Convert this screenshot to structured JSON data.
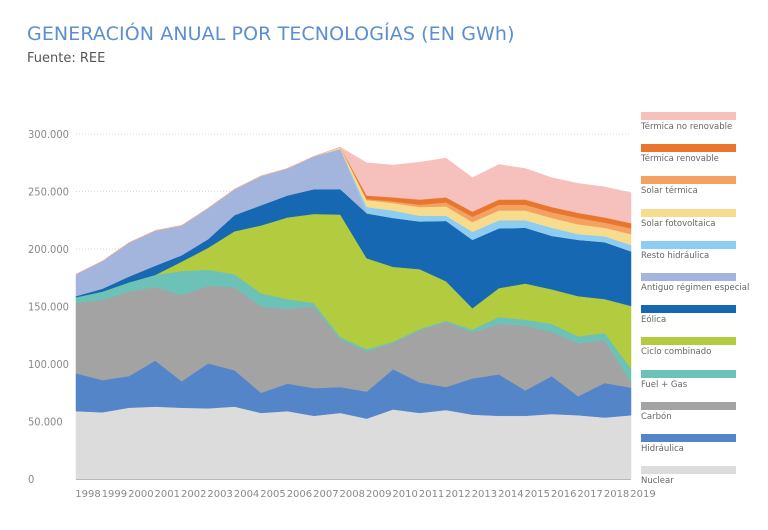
{
  "header": {
    "title": "GENERACIÓN ANUAL POR TECNOLOGÍAS (EN GWh)",
    "source": "Fuente: REE"
  },
  "chart_data": {
    "type": "area",
    "stacked": true,
    "title": "GENERACIÓN ANUAL POR TECNOLOGÍAS (EN GWh)",
    "subtitle": "Fuente: REE",
    "xlabel": "",
    "ylabel": "",
    "ylim": [
      0,
      300000
    ],
    "yticks": [
      0,
      50000,
      100000,
      150000,
      200000,
      250000,
      300000
    ],
    "ytick_labels": [
      "0",
      "50.000",
      "100.000",
      "150.000",
      "200.000",
      "250.000",
      "300.000"
    ],
    "grid": true,
    "legend_position": "right",
    "categories": [
      "1998",
      "1999",
      "2000",
      "2001",
      "2002",
      "2003",
      "2004",
      "2005",
      "2006",
      "2007",
      "2008",
      "2009",
      "2010",
      "2011",
      "2012",
      "2013",
      "2014",
      "2015",
      "2016",
      "2017",
      "2018",
      "2019"
    ],
    "series": [
      {
        "name": "Nuclear",
        "color": "#dcdcdc",
        "values": [
          59000,
          58000,
          62000,
          63000,
          62000,
          61500,
          63000,
          57500,
          59000,
          55000,
          57500,
          52500,
          60500,
          57500,
          60000,
          56000,
          55000,
          55000,
          56500,
          55500,
          53500,
          55500
        ]
      },
      {
        "name": "Hidráulica",
        "color": "#5585c9",
        "values": [
          33000,
          28000,
          27500,
          40000,
          23000,
          39000,
          31500,
          17500,
          24000,
          24000,
          22500,
          23500,
          35000,
          26500,
          20000,
          31500,
          36000,
          22000,
          33000,
          16500,
          30000,
          24000
        ]
      },
      {
        "name": "Carbón",
        "color": "#a3a3a3",
        "values": [
          61000,
          70000,
          73500,
          64000,
          75000,
          67500,
          72000,
          75000,
          65000,
          71000,
          41500,
          35000,
          23000,
          45500,
          56500,
          40000,
          44000,
          56500,
          38500,
          46000,
          37500,
          4500
        ]
      },
      {
        "name": "Fuel + Gas",
        "color": "#6dc2b8",
        "values": [
          5000,
          7000,
          8000,
          10500,
          21000,
          14000,
          11500,
          11500,
          8500,
          3000,
          2000,
          2000,
          1000,
          1000,
          1000,
          2500,
          6000,
          5000,
          7000,
          6000,
          6000,
          12000
        ]
      },
      {
        "name": "Ciclo combinado",
        "color": "#b2cb3f",
        "values": [
          0,
          0,
          0,
          0,
          8000,
          19000,
          37500,
          59000,
          71000,
          77500,
          106500,
          79000,
          65000,
          52000,
          34500,
          18500,
          25000,
          31500,
          30000,
          35000,
          29500,
          54500
        ]
      },
      {
        "name": "Eólica",
        "color": "#1668b3",
        "values": [
          1000,
          2500,
          5000,
          8000,
          5500,
          7500,
          14000,
          17500,
          19000,
          21500,
          22000,
          39000,
          42500,
          41500,
          52500,
          59500,
          52000,
          48500,
          46500,
          49000,
          49500,
          47500
        ]
      },
      {
        "name": "Antiguo régimen especial",
        "color": "#a3b5dd",
        "values": [
          19000,
          24000,
          29500,
          30500,
          26000,
          27000,
          22500,
          25500,
          23500,
          28500,
          35000,
          0,
          0,
          0,
          0,
          0,
          0,
          0,
          0,
          0,
          0,
          0
        ]
      },
      {
        "name": "Resto hidráulica",
        "color": "#8dcdf2",
        "values": [
          0,
          0,
          0,
          0,
          0,
          0,
          0,
          0,
          0,
          0,
          0,
          5500,
          6500,
          5000,
          4500,
          7000,
          7000,
          6500,
          7000,
          5000,
          5000,
          5500
        ]
      },
      {
        "name": "Solar fotovoltaica",
        "color": "#f7dc8d",
        "values": [
          0,
          0,
          0,
          0,
          0,
          0,
          0,
          0,
          0,
          0,
          1500,
          6000,
          6500,
          7500,
          8000,
          8500,
          8500,
          8500,
          8500,
          8500,
          7500,
          9500
        ]
      },
      {
        "name": "Solar térmica",
        "color": "#f4a262",
        "values": [
          0,
          0,
          0,
          0,
          0,
          0,
          0,
          0,
          0,
          0,
          0,
          1000,
          1500,
          2000,
          3500,
          4500,
          5000,
          5000,
          5000,
          5500,
          4500,
          5000
        ]
      },
      {
        "name": "Térmica renovable",
        "color": "#e9762f",
        "values": [
          0,
          0,
          0,
          0,
          0,
          0,
          0,
          0,
          0,
          0,
          0,
          3000,
          3500,
          4500,
          4500,
          4500,
          4500,
          4500,
          4500,
          4500,
          4500,
          4500
        ]
      },
      {
        "name": "Térmica no renovable",
        "color": "#f6c0bd",
        "values": [
          0,
          0,
          0,
          0,
          0,
          0,
          0,
          0,
          0,
          0,
          0,
          28500,
          28000,
          32500,
          34000,
          29500,
          30500,
          27000,
          25500,
          25500,
          26500,
          26500
        ]
      }
    ]
  },
  "legend": {
    "items": [
      {
        "label": "Térmica no renovable",
        "color": "#f6c0bd"
      },
      {
        "label": "Térmica renovable",
        "color": "#e9762f"
      },
      {
        "label": "Solar térmica",
        "color": "#f4a262"
      },
      {
        "label": "Solar fotovoltaica",
        "color": "#f7dc8d"
      },
      {
        "label": "Resto hidráulica",
        "color": "#8dcdf2"
      },
      {
        "label": "Antiguo régimen especial",
        "color": "#a3b5dd"
      },
      {
        "label": "Eólica",
        "color": "#1668b3"
      },
      {
        "label": "Ciclo combinado",
        "color": "#b2cb3f"
      },
      {
        "label": "Fuel + Gas",
        "color": "#6dc2b8"
      },
      {
        "label": "Carbón",
        "color": "#a3a3a3"
      },
      {
        "label": "Hidráulica",
        "color": "#5585c9"
      },
      {
        "label": "Nuclear",
        "color": "#dcdcdc"
      }
    ]
  }
}
